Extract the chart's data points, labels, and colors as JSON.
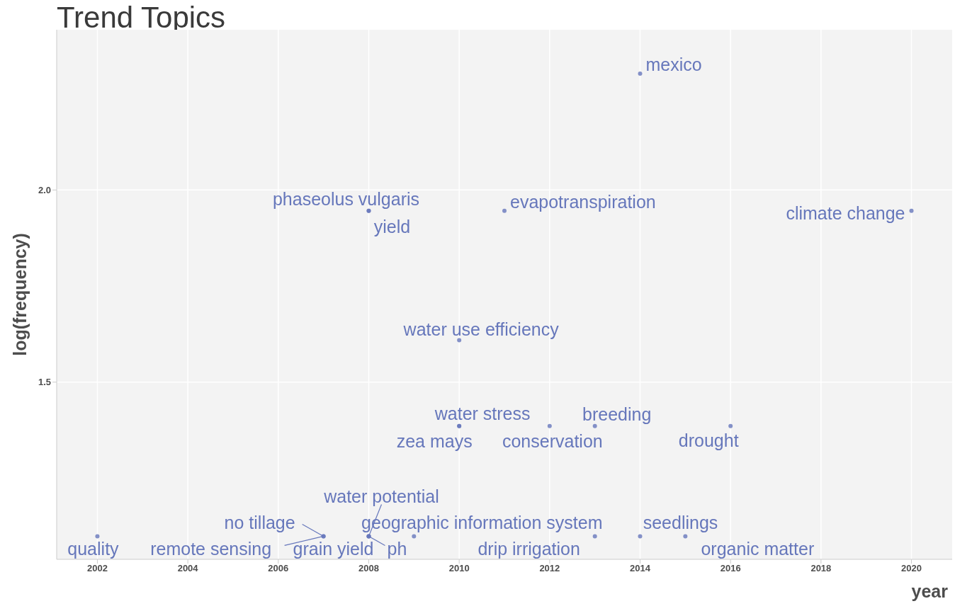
{
  "chart_data": {
    "type": "scatter",
    "title": "Trend Topics",
    "xlabel": "year",
    "ylabel": "log(frequency)",
    "xlim": [
      2001.1,
      2020.9
    ],
    "xticks": [
      2002,
      2004,
      2006,
      2008,
      2010,
      2012,
      2014,
      2016,
      2018,
      2020
    ],
    "ylim": [
      1.039,
      2.417
    ],
    "yticks": [
      1.5,
      {
        "value": 2,
        "label": "2.0"
      }
    ],
    "grid": true,
    "marker": "circle",
    "series": [
      {
        "color": "#6677bb",
        "x": [
          2014,
          2008,
          2008,
          2011,
          2020,
          2010,
          2010,
          2010,
          2012,
          2013,
          2016,
          2002,
          2007,
          2007,
          2008,
          2008,
          2008,
          2009,
          2013,
          2014,
          2015
        ],
        "values": [
          2.303,
          1.946,
          1.946,
          1.946,
          1.946,
          1.609,
          1.386,
          1.386,
          1.386,
          1.386,
          1.386,
          1.099,
          1.099,
          1.099,
          1.099,
          1.099,
          1.099,
          1.099,
          1.099,
          1.099,
          1.099
        ],
        "value_labels": [
          "mexico",
          "phaseolus vulgaris",
          "yield",
          "evapotranspiration",
          "climate change",
          "water use efficiency",
          "water stress",
          "zea mays",
          "conservation",
          "breeding",
          "drought",
          "quality",
          "no tillage",
          "remote sensing",
          "water potential",
          "grain yield",
          "ph",
          "geographic information system",
          "drip irrigation",
          "seedlings",
          "organic matter"
        ]
      }
    ]
  }
}
